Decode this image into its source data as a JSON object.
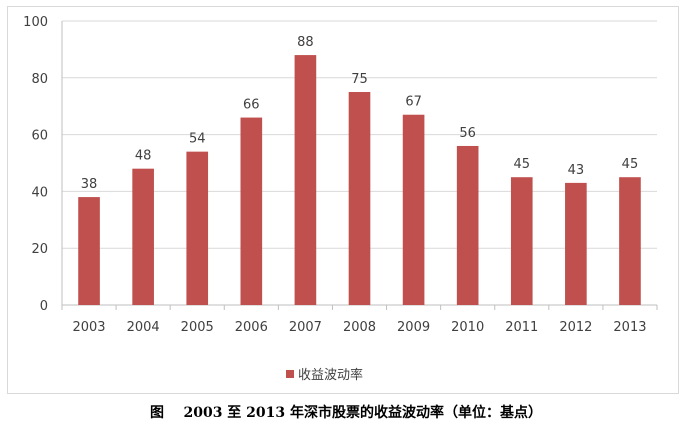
{
  "chart_data": {
    "type": "bar",
    "categories": [
      "2003",
      "2004",
      "2005",
      "2006",
      "2007",
      "2008",
      "2009",
      "2010",
      "2011",
      "2012",
      "2013"
    ],
    "series": [
      {
        "name": "收益波动率",
        "values": [
          38,
          48,
          54,
          66,
          88,
          75,
          67,
          56,
          45,
          43,
          45
        ],
        "color": "#c0504d"
      }
    ],
    "data_labels": [
      "38",
      "48",
      "54",
      "66",
      "88",
      "75",
      "67",
      "56",
      "45",
      "43",
      "45"
    ],
    "ylim": [
      0,
      100
    ],
    "yticks": [
      "0",
      "20",
      "40",
      "60",
      "80",
      "100"
    ],
    "grid": true,
    "legend_position": "bottom",
    "title": ""
  },
  "caption": "图    2003 至 2013 年深市股票的收益波动率（单位：基点）"
}
